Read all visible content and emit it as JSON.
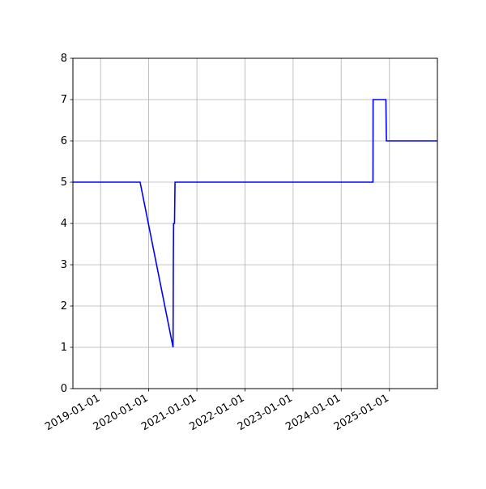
{
  "chart_data": {
    "type": "line",
    "title": "",
    "xlabel": "",
    "ylabel": "",
    "grid": true,
    "x_axis": {
      "type": "date",
      "range": [
        "2018-06-05",
        "2025-12-31"
      ],
      "ticks": [
        "2019-01-01",
        "2020-01-01",
        "2021-01-01",
        "2022-01-01",
        "2023-01-01",
        "2024-01-01",
        "2025-01-01"
      ]
    },
    "y_axis": {
      "range": [
        0,
        8
      ],
      "ticks": [
        0,
        1,
        2,
        3,
        4,
        5,
        6,
        7,
        8
      ]
    },
    "series": [
      {
        "color": "#0000ff",
        "points": [
          {
            "x": "2018-06-05",
            "y": 5
          },
          {
            "x": "2019-10-28",
            "y": 5
          },
          {
            "x": "2020-07-04",
            "y": 1
          },
          {
            "x": "2020-07-06",
            "y": 3
          },
          {
            "x": "2020-07-08",
            "y": 4
          },
          {
            "x": "2020-07-15",
            "y": 4
          },
          {
            "x": "2020-07-19",
            "y": 5
          },
          {
            "x": "2024-08-29",
            "y": 5
          },
          {
            "x": "2024-08-30",
            "y": 7
          },
          {
            "x": "2024-12-05",
            "y": 7
          },
          {
            "x": "2024-12-09",
            "y": 6
          },
          {
            "x": "2025-12-31",
            "y": 6
          }
        ]
      }
    ]
  }
}
